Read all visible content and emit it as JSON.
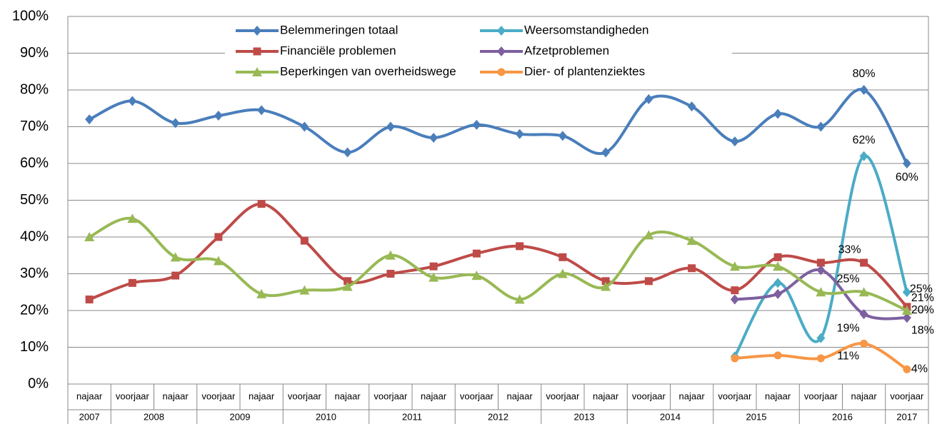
{
  "chart_data": {
    "type": "line",
    "categories": [
      "najaar",
      "voorjaar",
      "najaar",
      "voorjaar",
      "najaar",
      "voorjaar",
      "najaar",
      "voorjaar",
      "najaar",
      "voorjaar",
      "najaar",
      "voorjaar",
      "najaar",
      "voorjaar",
      "najaar",
      "voorjaar",
      "najaar",
      "voorjaar",
      "najaar",
      "voorjaar"
    ],
    "year_groups": [
      {
        "label": "2007",
        "size": 1
      },
      {
        "label": "2008",
        "size": 2
      },
      {
        "label": "2009",
        "size": 2
      },
      {
        "label": "2010",
        "size": 2
      },
      {
        "label": "2011",
        "size": 2
      },
      {
        "label": "2012",
        "size": 2
      },
      {
        "label": "2013",
        "size": 2
      },
      {
        "label": "2014",
        "size": 2
      },
      {
        "label": "2015",
        "size": 2
      },
      {
        "label": "2016",
        "size": 2
      },
      {
        "label": "2017",
        "size": 1
      }
    ],
    "ylim": [
      0,
      100
    ],
    "yticks": [
      {
        "value": 0,
        "label": "0%"
      },
      {
        "value": 10,
        "label": "10%"
      },
      {
        "value": 20,
        "label": "20%"
      },
      {
        "value": 30,
        "label": "30%"
      },
      {
        "value": 40,
        "label": "40%"
      },
      {
        "value": 50,
        "label": "50%"
      },
      {
        "value": 60,
        "label": "60%"
      },
      {
        "value": 70,
        "label": "70%"
      },
      {
        "value": 80,
        "label": "80%"
      },
      {
        "value": 90,
        "label": "90%"
      },
      {
        "value": 100,
        "label": "100%"
      }
    ],
    "grid": true,
    "smooth": true,
    "legend": "top",
    "series": [
      {
        "name": "Belemmeringen totaal",
        "color": "#4a7ebb",
        "marker": "diamond",
        "values": [
          72,
          77,
          71,
          73,
          74.5,
          70,
          63,
          70,
          67,
          70.5,
          68,
          67.5,
          63,
          77.5,
          75.5,
          66,
          73.5,
          70,
          80,
          60
        ],
        "value_labels": [
          null,
          null,
          null,
          null,
          null,
          null,
          null,
          null,
          null,
          null,
          null,
          null,
          null,
          null,
          null,
          null,
          null,
          null,
          "80%",
          "60%"
        ]
      },
      {
        "name": "Weersomstandigheden",
        "color": "#4bacc6",
        "marker": "diamond",
        "values": [
          null,
          null,
          null,
          null,
          null,
          null,
          null,
          null,
          null,
          null,
          null,
          null,
          null,
          null,
          null,
          7.5,
          27.5,
          12.5,
          62,
          25
        ],
        "value_labels": [
          null,
          null,
          null,
          null,
          null,
          null,
          null,
          null,
          null,
          null,
          null,
          null,
          null,
          null,
          null,
          null,
          null,
          null,
          "62%",
          "25%"
        ]
      },
      {
        "name": "Financiële problemen",
        "color": "#be4b48",
        "marker": "square",
        "values": [
          23,
          27.5,
          29.5,
          40,
          49,
          39,
          28,
          30,
          32,
          35.5,
          37.5,
          34.5,
          28,
          28,
          31.5,
          25.5,
          34.5,
          33,
          33,
          21
        ],
        "value_labels": [
          null,
          null,
          null,
          null,
          null,
          null,
          null,
          null,
          null,
          null,
          null,
          null,
          null,
          null,
          null,
          null,
          null,
          null,
          "33%",
          "21%"
        ]
      },
      {
        "name": "Afzetproblemen",
        "color": "#7d60a0",
        "marker": "diamond",
        "values": [
          null,
          null,
          null,
          null,
          null,
          null,
          null,
          null,
          null,
          null,
          null,
          null,
          null,
          null,
          null,
          23,
          24.5,
          31,
          19,
          18
        ],
        "value_labels": [
          null,
          null,
          null,
          null,
          null,
          null,
          null,
          null,
          null,
          null,
          null,
          null,
          null,
          null,
          null,
          null,
          null,
          null,
          "19%",
          "18%"
        ]
      },
      {
        "name": "Beperkingen van overheidswege",
        "color": "#98b954",
        "marker": "triangle",
        "values": [
          40,
          45,
          34.5,
          33.5,
          24.5,
          25.5,
          26.5,
          35,
          29,
          29.5,
          23,
          30,
          26.5,
          40.5,
          39,
          32,
          32,
          25,
          25,
          20
        ],
        "value_labels": [
          null,
          null,
          null,
          null,
          null,
          null,
          null,
          null,
          null,
          null,
          null,
          null,
          null,
          null,
          null,
          null,
          null,
          null,
          "25%",
          "20%"
        ]
      },
      {
        "name": "Dier- of plantenziektes",
        "color": "#f79646",
        "marker": "circle",
        "values": [
          null,
          null,
          null,
          null,
          null,
          null,
          null,
          null,
          null,
          null,
          null,
          null,
          null,
          null,
          null,
          7,
          7.8,
          7,
          11,
          4
        ],
        "value_labels": [
          null,
          null,
          null,
          null,
          null,
          null,
          null,
          null,
          null,
          null,
          null,
          null,
          null,
          null,
          null,
          null,
          null,
          null,
          "11%",
          "4%"
        ]
      }
    ]
  }
}
